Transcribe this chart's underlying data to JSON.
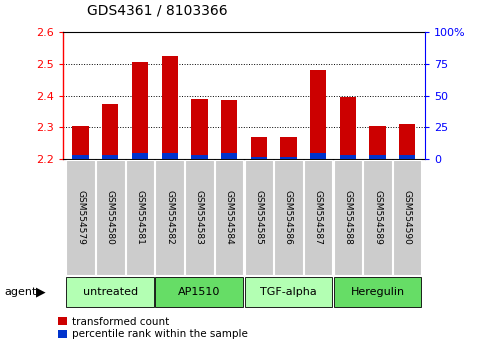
{
  "title": "GDS4361 / 8103366",
  "samples": [
    "GSM554579",
    "GSM554580",
    "GSM554581",
    "GSM554582",
    "GSM554583",
    "GSM554584",
    "GSM554585",
    "GSM554586",
    "GSM554587",
    "GSM554588",
    "GSM554589",
    "GSM554590"
  ],
  "red_values": [
    2.305,
    2.375,
    2.505,
    2.525,
    2.39,
    2.385,
    2.27,
    2.27,
    2.48,
    2.395,
    2.305,
    2.31
  ],
  "blue_percentile": [
    3,
    3,
    5,
    5,
    3,
    5,
    2,
    2,
    5,
    3,
    3,
    3
  ],
  "ylim_left": [
    2.2,
    2.6
  ],
  "ylim_right": [
    0,
    100
  ],
  "yticks_left": [
    2.2,
    2.3,
    2.4,
    2.5,
    2.6
  ],
  "yticks_right": [
    0,
    25,
    50,
    75,
    100
  ],
  "ytick_labels_right": [
    "0",
    "25",
    "50",
    "75",
    "100%"
  ],
  "groups": [
    {
      "label": "untreated",
      "start": 0,
      "end": 3,
      "color": "#b3ffb3"
    },
    {
      "label": "AP1510",
      "start": 3,
      "end": 6,
      "color": "#66dd66"
    },
    {
      "label": "TGF-alpha",
      "start": 6,
      "end": 9,
      "color": "#b3ffb3"
    },
    {
      "label": "Heregulin",
      "start": 9,
      "end": 12,
      "color": "#66dd66"
    }
  ],
  "bar_width": 0.55,
  "red_color": "#cc0000",
  "blue_color": "#0033cc",
  "bg_color": "#ffffff",
  "sample_bg_color": "#cccccc",
  "legend_red": "transformed count",
  "legend_blue": "percentile rank within the sample",
  "agent_label": "agent"
}
